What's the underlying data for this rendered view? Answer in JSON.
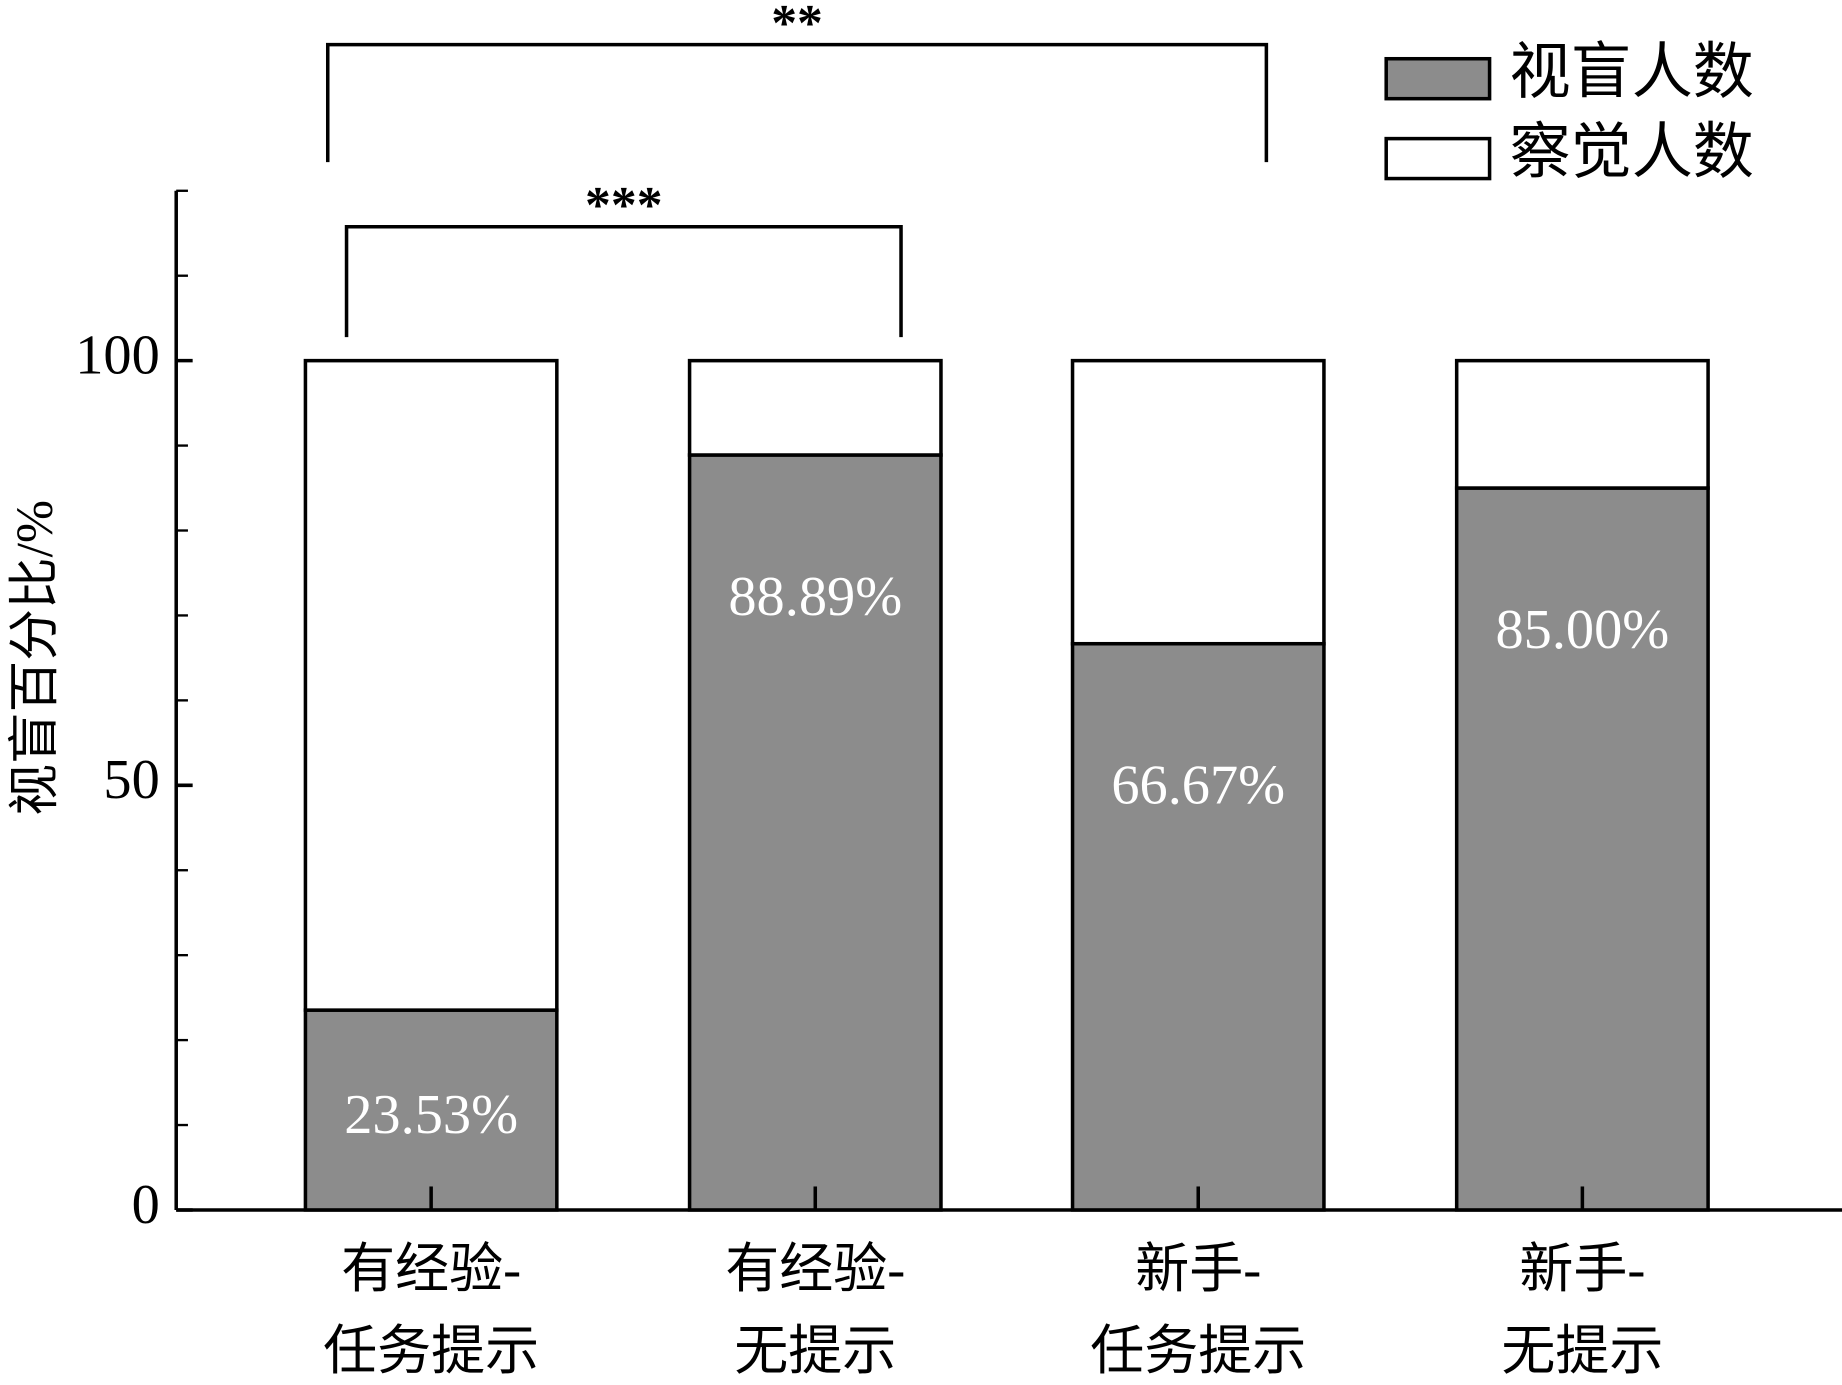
{
  "chart_data": {
    "type": "stacked_bar",
    "y_label": "视盲百分比/%",
    "categories": [
      [
        "有经验-",
        "任务提示"
      ],
      [
        "有经验-",
        "无提示"
      ],
      [
        "新手-",
        "任务提示"
      ],
      [
        "新手-",
        "无提示"
      ]
    ],
    "series": [
      {
        "name": "视盲人数",
        "color": "#8c8c8c",
        "values": [
          23.53,
          88.89,
          66.67,
          85.0
        ],
        "value_labels": [
          "23.53%",
          "88.89%",
          "66.67%",
          "85.00%"
        ]
      },
      {
        "name": "察觉人数",
        "color": "#ffffff",
        "values": [
          76.47,
          11.11,
          33.33,
          15.0
        ]
      }
    ],
    "ylim": [
      0,
      120
    ],
    "yticks": [
      0,
      50,
      100
    ],
    "yminor": [
      10,
      20,
      30,
      40,
      60,
      70,
      80,
      90,
      110,
      120
    ],
    "annotations": [
      {
        "text": "***",
        "from": 0,
        "to": 1
      },
      {
        "text": "**",
        "from": 0,
        "to": 2
      }
    ],
    "legend": "upper right"
  }
}
